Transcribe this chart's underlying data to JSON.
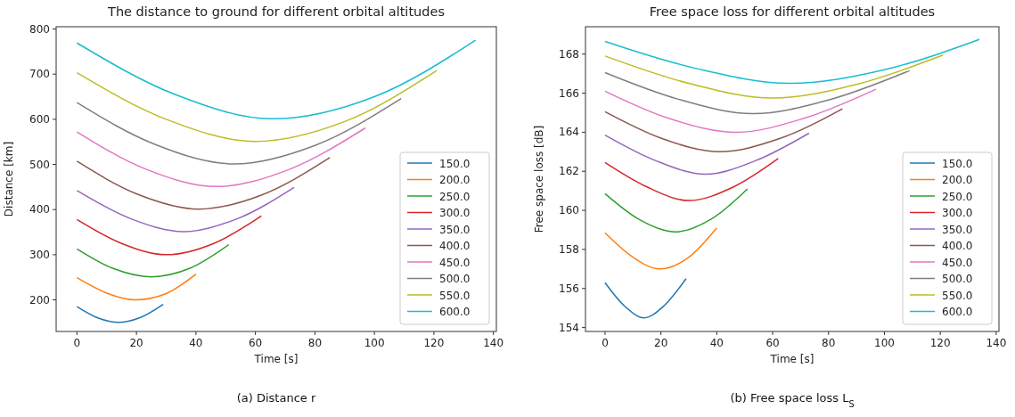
{
  "chart_data": [
    {
      "type": "line",
      "title": "The distance to ground for different orbital altitudes",
      "xlabel": "Time [s]",
      "ylabel": "Distance [km]",
      "annotations": [
        "(a) Distance r"
      ],
      "xlim": [
        -7,
        141
      ],
      "xticks": [
        0,
        20,
        40,
        60,
        80,
        100,
        120,
        140
      ],
      "ylim": [
        130,
        805
      ],
      "yticks": [
        200,
        300,
        400,
        500,
        600,
        700,
        800
      ],
      "grid": false,
      "legend": "bottom right",
      "series": [
        {
          "name": "150.0",
          "color": "#1f77b4",
          "x": [
            0,
            7,
            14,
            21,
            29
          ],
          "values": [
            185,
            160,
            150,
            160,
            190
          ]
        },
        {
          "name": "200.0",
          "color": "#ff7f0e",
          "x": [
            0,
            10,
            19.5,
            30,
            40
          ],
          "values": [
            249,
            215,
            200,
            214,
            257
          ]
        },
        {
          "name": "250.0",
          "color": "#2ca02c",
          "x": [
            0,
            12,
            25,
            38,
            51
          ],
          "values": [
            313,
            270,
            251,
            270,
            322
          ]
        },
        {
          "name": "300.0",
          "color": "#d62728",
          "x": [
            0,
            15,
            30,
            46,
            62
          ],
          "values": [
            378,
            325,
            300,
            325,
            386
          ]
        },
        {
          "name": "350.0",
          "color": "#9467bd",
          "x": [
            0,
            18,
            36,
            54,
            73
          ],
          "values": [
            442,
            380,
            351,
            380,
            449
          ]
        },
        {
          "name": "400.0",
          "color": "#8c564b",
          "x": [
            0,
            20,
            41,
            62,
            85
          ],
          "values": [
            507,
            435,
            401,
            432,
            515
          ]
        },
        {
          "name": "450.0",
          "color": "#e377c2",
          "x": [
            0,
            23,
            47,
            71,
            97
          ],
          "values": [
            572,
            490,
            451,
            488,
            581
          ]
        },
        {
          "name": "500.0",
          "color": "#7f7f7f",
          "x": [
            0,
            26,
            53,
            80,
            109
          ],
          "values": [
            637,
            545,
            501,
            542,
            646
          ]
        },
        {
          "name": "550.0",
          "color": "#bcbd22",
          "x": [
            0,
            30,
            60,
            90,
            121
          ],
          "values": [
            703,
            600,
            551,
            595,
            708
          ]
        },
        {
          "name": "600.0",
          "color": "#17becf",
          "x": [
            0,
            33,
            66,
            100,
            134
          ],
          "values": [
            769,
            655,
            601,
            650,
            775
          ]
        }
      ]
    },
    {
      "type": "line",
      "title": "Free space loss for different orbital altitudes",
      "xlabel": "Time [s]",
      "ylabel": "Free space loss [dB]",
      "annotations": [
        "(b) Free space loss L$_{S}$"
      ],
      "xlim": [
        -7,
        141
      ],
      "xticks": [
        0,
        20,
        40,
        60,
        80,
        100,
        120,
        140
      ],
      "ylim": [
        153.8,
        169.4
      ],
      "yticks": [
        154,
        156,
        158,
        160,
        162,
        164,
        166,
        168
      ],
      "grid": false,
      "legend": "bottom right",
      "series": [
        {
          "name": "150.0",
          "color": "#1f77b4",
          "x": [
            0,
            7,
            14,
            21,
            29
          ],
          "values": [
            156.3,
            155.1,
            154.5,
            155.1,
            156.5
          ]
        },
        {
          "name": "200.0",
          "color": "#ff7f0e",
          "x": [
            0,
            10,
            19.5,
            30,
            40
          ],
          "values": [
            158.85,
            157.6,
            157.0,
            157.6,
            159.1
          ]
        },
        {
          "name": "250.0",
          "color": "#2ca02c",
          "x": [
            0,
            12,
            25,
            38,
            51
          ],
          "values": [
            160.85,
            159.55,
            158.9,
            159.55,
            161.1
          ]
        },
        {
          "name": "300.0",
          "color": "#d62728",
          "x": [
            0,
            15,
            30,
            46,
            62
          ],
          "values": [
            162.45,
            161.2,
            160.5,
            161.2,
            162.65
          ]
        },
        {
          "name": "350.0",
          "color": "#9467bd",
          "x": [
            0,
            18,
            36,
            54,
            73
          ],
          "values": [
            163.85,
            162.55,
            161.85,
            162.55,
            163.95
          ]
        },
        {
          "name": "400.0",
          "color": "#8c564b",
          "x": [
            0,
            20,
            41,
            62,
            85
          ],
          "values": [
            165.05,
            163.7,
            163.0,
            163.65,
            165.2
          ]
        },
        {
          "name": "450.0",
          "color": "#e377c2",
          "x": [
            0,
            23,
            47,
            71,
            97
          ],
          "values": [
            166.1,
            164.7,
            164.0,
            164.7,
            166.2
          ]
        },
        {
          "name": "500.0",
          "color": "#7f7f7f",
          "x": [
            0,
            26,
            53,
            80,
            109
          ],
          "values": [
            167.05,
            165.7,
            164.95,
            165.65,
            167.15
          ]
        },
        {
          "name": "550.0",
          "color": "#bcbd22",
          "x": [
            0,
            30,
            60,
            90,
            121
          ],
          "values": [
            167.9,
            166.5,
            165.75,
            166.45,
            167.95
          ]
        },
        {
          "name": "600.0",
          "color": "#17becf",
          "x": [
            0,
            33,
            66,
            100,
            134
          ],
          "values": [
            168.65,
            167.25,
            166.5,
            167.2,
            168.75
          ]
        }
      ]
    }
  ]
}
